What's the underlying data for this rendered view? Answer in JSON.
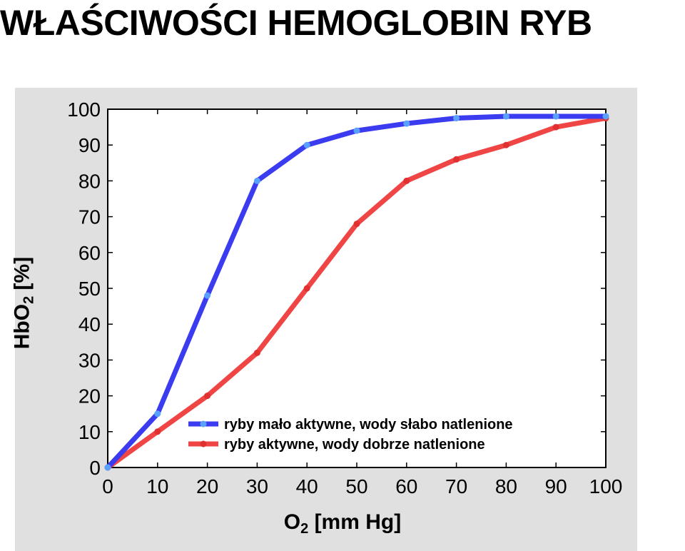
{
  "title": "WŁAŚCIWOŚCI HEMOGLOBIN RYB",
  "chart_data": {
    "type": "line",
    "title": "WŁAŚCIWOŚCI HEMOGLOBIN RYB",
    "xlabel": {
      "base": "O",
      "sub": "2",
      "rest": " [mm Hg]"
    },
    "ylabel": {
      "base": "HbO",
      "sub": "2",
      "rest": " [%]"
    },
    "xlim": [
      0,
      100
    ],
    "ylim": [
      0,
      100
    ],
    "xticks": [
      "0",
      "10",
      "20",
      "30",
      "40",
      "50",
      "60",
      "70",
      "80",
      "90",
      "100"
    ],
    "yticks": [
      "0",
      "10",
      "20",
      "30",
      "40",
      "50",
      "60",
      "70",
      "80",
      "90",
      "100"
    ],
    "x": [
      0,
      10,
      20,
      30,
      40,
      50,
      60,
      70,
      80,
      90,
      100
    ],
    "series": [
      {
        "name": "ryby mało aktywne, wody słabo natlenione",
        "color": "#3b3bf0",
        "marker_color": "#5aa0ff",
        "values": [
          0,
          15,
          48,
          80,
          90,
          94,
          96,
          97.5,
          98,
          98,
          98
        ]
      },
      {
        "name": "ryby aktywne, wody dobrze natlenione",
        "color": "#f04545",
        "marker_color": "#e03030",
        "values": [
          0,
          10,
          20,
          32,
          50,
          68,
          80,
          86,
          90,
          95,
          97.5
        ]
      }
    ],
    "legend": "lower-right",
    "grid": false,
    "background": "#e0e0e0",
    "plot_background": "#ffffff"
  }
}
